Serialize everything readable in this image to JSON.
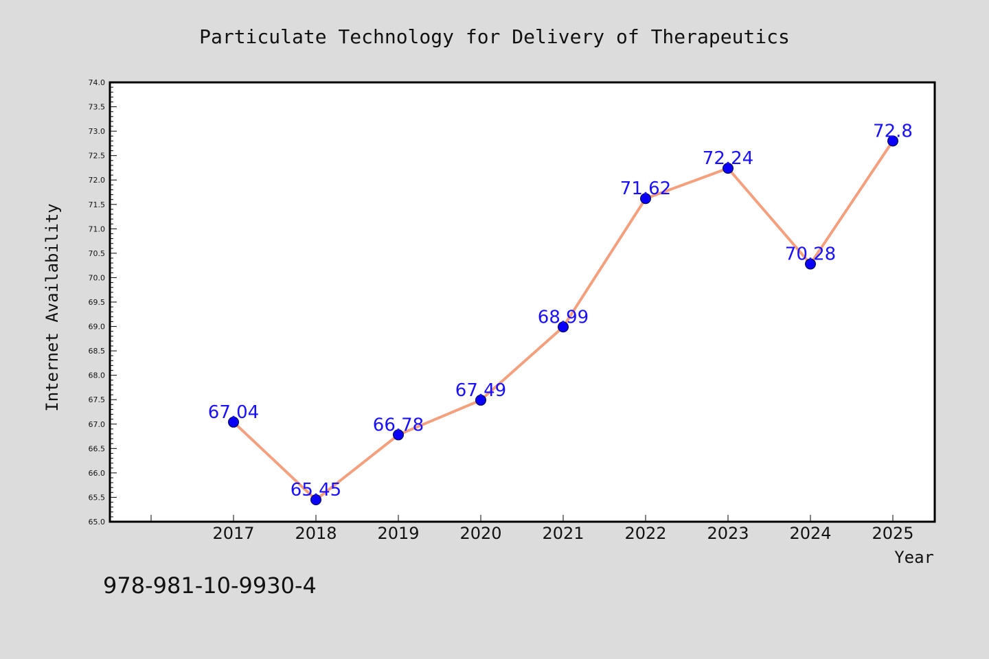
{
  "chart_data": {
    "type": "line",
    "title": "Particulate Technology for Delivery of Therapeutics",
    "xlabel": "Year",
    "ylabel": "Internet Availability",
    "categories": [
      "2017",
      "2018",
      "2019",
      "2020",
      "2021",
      "2022",
      "2023",
      "2024",
      "2025"
    ],
    "series": [
      {
        "values": [
          67.04,
          65.45,
          66.78,
          67.49,
          68.99,
          71.62,
          72.24,
          70.28,
          72.8
        ],
        "labels": [
          "67.04",
          "65.45",
          "66.78",
          "67.49",
          "68.99",
          "71.62",
          "72.24",
          "70.28",
          "72.8"
        ]
      }
    ],
    "ylim": [
      65.0,
      74.0
    ],
    "ytick_labels": [
      "65.0",
      "65.5",
      "66.0",
      "66.5",
      "67.0",
      "67.5",
      "68.0",
      "68.5",
      "69.0",
      "69.5",
      "70.0",
      "70.5",
      "71.0",
      "71.5",
      "72.0",
      "72.5",
      "73.0",
      "73.5",
      "74.0"
    ],
    "grid": false,
    "legend": false
  },
  "colors": {
    "line": "#f4a07e",
    "marker": "#0a00f5",
    "data_label": "#1a10ff",
    "plot_background": "#ffffff",
    "page_background": "#dcdcdc"
  },
  "footer_text": "978-981-10-9930-4"
}
